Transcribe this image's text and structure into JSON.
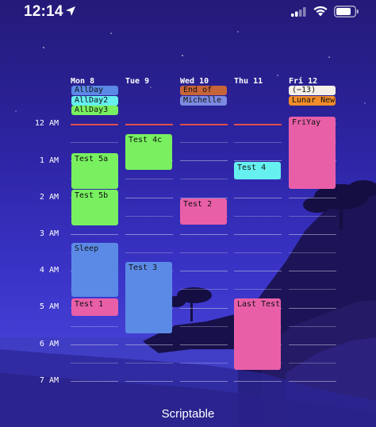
{
  "status_bar": {
    "time": "12:14"
  },
  "days": [
    {
      "label": "Mon 8"
    },
    {
      "label": "Tue 9"
    },
    {
      "label": "Wed 10"
    },
    {
      "label": "Thu 11"
    },
    {
      "label": "Fri 12"
    }
  ],
  "allday_events": [
    {
      "title": "AllDay",
      "color": "#5b8ae6"
    },
    {
      "title": "AllDay2",
      "color": "#66f0f0"
    },
    {
      "title": "AllDay3",
      "color": "#78f060"
    },
    {
      "title": "End of",
      "color": "#c8643a"
    },
    {
      "title": "Michelle",
      "color": "#7b8ae0"
    },
    {
      "title": "(−13)",
      "color": "#f4f0e8"
    },
    {
      "title": "Lunar New",
      "color": "#f08c2a"
    }
  ],
  "hours": [
    "12 AM",
    "1 AM",
    "2 AM",
    "3 AM",
    "4 AM",
    "5 AM",
    "6 AM",
    "7 AM"
  ],
  "events": [
    {
      "title": "Test 5a",
      "color": "#78f060"
    },
    {
      "title": "Test 5b",
      "color": "#78f060"
    },
    {
      "title": "Sleep",
      "color": "#5b8ae6"
    },
    {
      "title": "Test 1",
      "color": "#e85fa8"
    },
    {
      "title": "Test 4c",
      "color": "#78f060"
    },
    {
      "title": "Test 3",
      "color": "#5b8ae6"
    },
    {
      "title": "Test 2",
      "color": "#e85fa8"
    },
    {
      "title": "Test 4",
      "color": "#66f0f0"
    },
    {
      "title": "Last Test",
      "color": "#e85fa8"
    },
    {
      "title": "FriYay",
      "color": "#e85fa8"
    }
  ],
  "app_name": "Scriptable"
}
